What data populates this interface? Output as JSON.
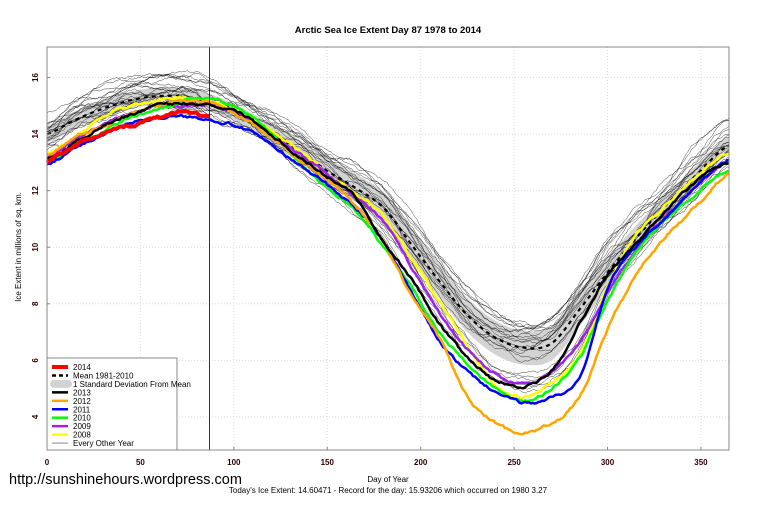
{
  "chart_data": {
    "type": "line",
    "title": "Arctic Sea Ice Extent Day 87 1978 to 2014",
    "xlabel": "Day of Year",
    "ylabel": "Ice Extent in millions of sq. km.",
    "footer": "Today's Ice Extent: 14.60471  - Record for the day: 15.93206 which occurred on 1980 3.27",
    "watermark": "http://sunshinehours.wordpress.com",
    "xlim": [
      0,
      365
    ],
    "ylim": [
      2.83,
      17.08
    ],
    "xticks": [
      "0",
      "50",
      "100",
      "150",
      "200",
      "250",
      "300",
      "350"
    ],
    "yticks": [
      "4",
      "6",
      "8",
      "10",
      "12",
      "14",
      "16"
    ],
    "grid": true,
    "current_day_marker": 87,
    "legend_position": "bottom-left",
    "days": [
      0,
      15,
      30,
      45,
      60,
      75,
      90,
      105,
      120,
      135,
      150,
      165,
      180,
      195,
      210,
      225,
      240,
      255,
      270,
      285,
      300,
      315,
      330,
      345,
      365
    ],
    "mean": {
      "name": "Mean 1981-2010",
      "color": "#000000",
      "values": [
        14.0,
        14.5,
        14.9,
        15.2,
        15.35,
        15.3,
        15.05,
        14.6,
        14.0,
        13.4,
        12.7,
        12.1,
        11.4,
        10.1,
        8.8,
        7.6,
        6.8,
        6.45,
        6.6,
        7.8,
        9.1,
        10.3,
        11.4,
        12.4,
        13.6
      ]
    },
    "sd_band": {
      "name": "1 Standard Deviation From Mean",
      "color": "#d3d3d3",
      "sd": [
        0.3,
        0.3,
        0.3,
        0.3,
        0.3,
        0.3,
        0.3,
        0.3,
        0.35,
        0.4,
        0.45,
        0.5,
        0.55,
        0.6,
        0.6,
        0.6,
        0.6,
        0.6,
        0.6,
        0.6,
        0.55,
        0.45,
        0.4,
        0.35,
        0.3
      ]
    },
    "series": [
      {
        "name": "2014",
        "color": "#ff0000",
        "width": 4,
        "days": [
          0,
          15,
          30,
          45,
          60,
          75,
          87
        ],
        "values": [
          13.0,
          13.6,
          14.0,
          14.3,
          14.6,
          14.8,
          14.6
        ]
      },
      {
        "name": "2013",
        "color": "#000000",
        "width": 2.5,
        "values": [
          13.1,
          13.7,
          14.3,
          14.7,
          15.0,
          15.1,
          15.0,
          14.7,
          14.0,
          13.2,
          12.5,
          11.8,
          10.2,
          8.9,
          7.3,
          6.1,
          5.3,
          5.1,
          5.6,
          7.3,
          9.0,
          10.1,
          11.2,
          12.2,
          13.0
        ]
      },
      {
        "name": "2012",
        "color": "#ffa500",
        "width": 2.5,
        "values": [
          13.3,
          13.9,
          14.3,
          14.7,
          15.0,
          15.2,
          15.1,
          14.6,
          13.9,
          13.1,
          12.4,
          11.5,
          10.2,
          8.3,
          6.8,
          4.7,
          3.8,
          3.45,
          3.8,
          4.7,
          7.1,
          9.0,
          10.3,
          11.3,
          12.6
        ]
      },
      {
        "name": "2011",
        "color": "#0000ff",
        "width": 2.5,
        "values": [
          12.9,
          13.5,
          14.0,
          14.4,
          14.6,
          14.6,
          14.5,
          14.2,
          13.6,
          12.9,
          12.2,
          11.4,
          10.2,
          8.4,
          6.7,
          5.6,
          4.9,
          4.5,
          4.7,
          5.4,
          8.6,
          10.0,
          11.0,
          12.0,
          13.1
        ]
      },
      {
        "name": "2010",
        "color": "#00ff00",
        "width": 2.5,
        "values": [
          13.0,
          13.6,
          14.1,
          14.6,
          14.9,
          15.2,
          15.2,
          14.8,
          14.0,
          13.0,
          12.1,
          11.3,
          10.0,
          8.6,
          7.0,
          5.9,
          5.0,
          4.6,
          5.0,
          6.1,
          8.1,
          9.8,
          10.9,
          11.8,
          12.7
        ]
      },
      {
        "name": "2009",
        "color": "#a020f0",
        "width": 2.5,
        "values": [
          13.1,
          13.8,
          14.3,
          14.7,
          15.0,
          15.0,
          15.0,
          14.6,
          14.0,
          13.3,
          12.6,
          11.8,
          10.9,
          9.3,
          7.7,
          6.4,
          5.5,
          5.2,
          5.6,
          6.6,
          8.4,
          9.9,
          11.0,
          12.0,
          13.1
        ]
      },
      {
        "name": "2008",
        "color": "#ffff00",
        "width": 2.5,
        "values": [
          13.3,
          13.9,
          14.6,
          15.0,
          15.2,
          15.3,
          15.1,
          14.7,
          14.1,
          13.4,
          12.6,
          11.9,
          11.1,
          9.6,
          8.1,
          6.5,
          5.1,
          4.7,
          5.2,
          6.2,
          8.6,
          10.4,
          11.4,
          12.4,
          13.3
        ]
      }
    ],
    "other_years": {
      "name": "Every Other Year",
      "color": "#000000",
      "values": [
        [
          14.4,
          15.0,
          15.4,
          15.8,
          16.0,
          15.9,
          15.6,
          15.1,
          14.5,
          13.9,
          13.2,
          12.6,
          11.9,
          10.8,
          9.5,
          8.3,
          7.5,
          7.2,
          7.4,
          8.6,
          9.9,
          11.0,
          12.0,
          13.0,
          14.1
        ],
        [
          14.2,
          14.8,
          15.2,
          15.5,
          15.7,
          15.6,
          15.3,
          14.9,
          14.3,
          13.7,
          13.0,
          12.4,
          11.7,
          10.5,
          9.2,
          8.0,
          7.2,
          6.9,
          7.1,
          8.3,
          9.6,
          10.7,
          11.8,
          12.8,
          13.9
        ],
        [
          13.8,
          14.3,
          14.8,
          15.1,
          15.2,
          15.2,
          15.0,
          14.5,
          13.9,
          13.2,
          12.5,
          11.8,
          11.0,
          9.7,
          8.4,
          7.3,
          6.5,
          6.2,
          6.4,
          7.5,
          8.9,
          10.1,
          11.2,
          12.2,
          13.4
        ],
        [
          14.0,
          14.6,
          15.0,
          15.3,
          15.5,
          15.4,
          15.1,
          14.7,
          14.1,
          13.5,
          12.9,
          12.2,
          11.5,
          10.3,
          9.0,
          7.8,
          7.0,
          6.7,
          6.9,
          8.1,
          9.4,
          10.5,
          11.6,
          12.6,
          13.7
        ],
        [
          13.6,
          14.2,
          14.7,
          15.0,
          15.1,
          15.0,
          14.8,
          14.4,
          13.8,
          13.1,
          12.3,
          11.6,
          10.6,
          9.3,
          7.9,
          6.7,
          5.8,
          5.4,
          5.7,
          6.9,
          8.6,
          9.9,
          11.0,
          12.0,
          13.3
        ],
        [
          14.6,
          15.1,
          15.6,
          15.9,
          16.2,
          16.1,
          15.7,
          15.2,
          14.6,
          14.0,
          13.4,
          12.8,
          12.1,
          11.1,
          9.8,
          8.5,
          7.6,
          7.3,
          7.6,
          8.8,
          10.1,
          11.2,
          12.2,
          13.3,
          14.4
        ],
        [
          13.4,
          14.0,
          14.5,
          14.8,
          15.0,
          14.9,
          14.6,
          14.2,
          13.6,
          12.9,
          12.1,
          11.3,
          10.3,
          8.9,
          7.6,
          6.3,
          5.3,
          4.9,
          5.2,
          6.4,
          8.3,
          9.7,
          10.8,
          11.8,
          13.1
        ],
        [
          13.9,
          14.5,
          14.9,
          15.3,
          15.4,
          15.5,
          15.2,
          14.8,
          14.2,
          13.6,
          12.8,
          12.1,
          11.3,
          10.0,
          8.7,
          7.5,
          6.8,
          6.5,
          6.7,
          7.9,
          9.2,
          10.3,
          11.4,
          12.5,
          13.6
        ]
      ]
    }
  }
}
